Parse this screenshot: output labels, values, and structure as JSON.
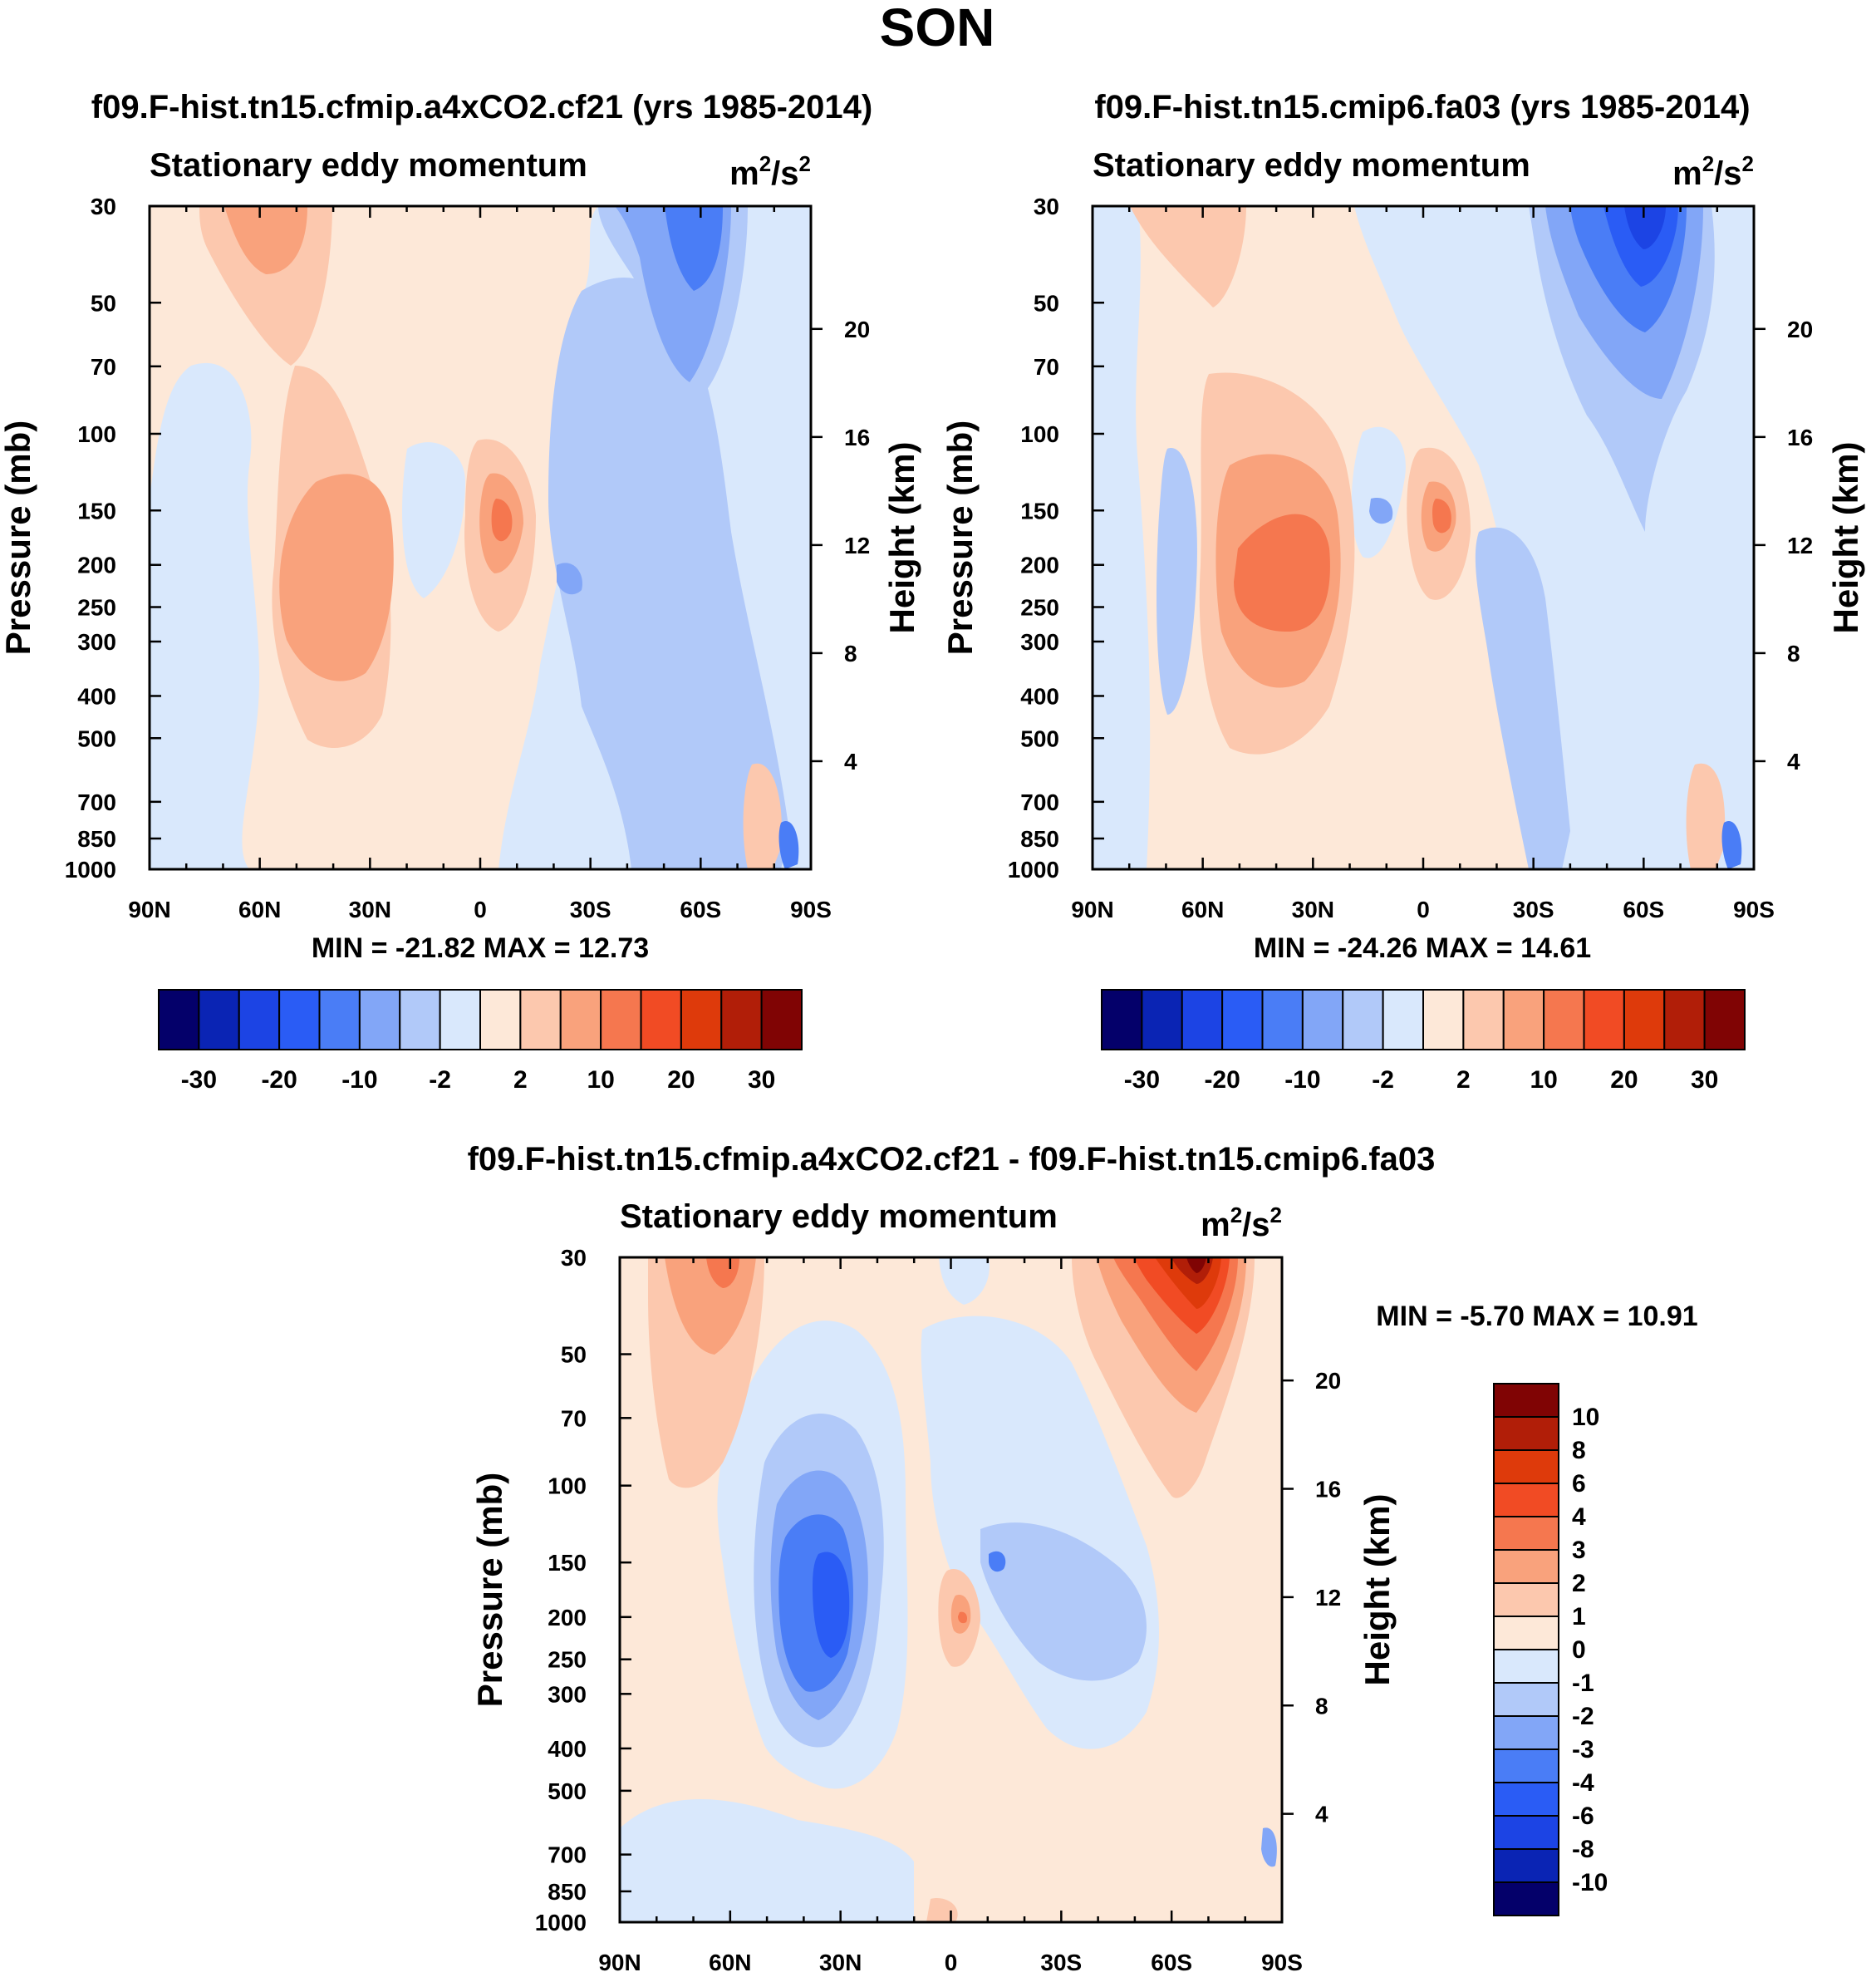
{
  "figure_title": "SON",
  "colors": {
    "blue_scale": [
      "#04006a",
      "#0a24b4",
      "#1c44e4",
      "#2a5cf5",
      "#4a7df6",
      "#82a6f7",
      "#b1c9f9",
      "#d9e8fc"
    ],
    "red_scale": [
      "#fde8d8",
      "#fcc8ae",
      "#f9a27c",
      "#f5774f",
      "#f14b24",
      "#de3a0b",
      "#b11e08",
      "#800404"
    ]
  },
  "chart_data": [
    {
      "type": "contour",
      "title": "f09.F-hist.tn15.cfmip.a4xCO2.cf21 (yrs 1985-2014)",
      "subtitle": "Stationary eddy momentum",
      "units": "m2/s2",
      "units_base": "m",
      "units_mid": "/s",
      "units_exp": "2",
      "xlabel": "",
      "ylabel": "Pressure (mb)",
      "y2label": "Height (km)",
      "x_ticks": [
        "90N",
        "60N",
        "30N",
        "0",
        "30S",
        "60S",
        "90S"
      ],
      "y_ticks": [
        "30",
        "50",
        "70",
        "100",
        "150",
        "200",
        "250",
        "300",
        "400",
        "500",
        "700",
        "850",
        "1000"
      ],
      "y2_ticks": [
        "20",
        "16",
        "12",
        "8",
        "4"
      ],
      "stat_min": "-21.82",
      "stat_max": "12.73",
      "stats_text": "MIN = -21.82  MAX =  12.73",
      "colorbar_labels": [
        "-30",
        "-20",
        "-10",
        "-2",
        "2",
        "10",
        "20",
        "30"
      ],
      "features": [
        {
          "name": "positive max near equator (10S)",
          "lat": -6,
          "pressure": 160,
          "value": 12.73
        },
        {
          "name": "negative min near 60S",
          "lat": -58,
          "pressure": 35,
          "value": -21.82
        },
        {
          "name": "positive lobe 30-50N",
          "lat": 35,
          "pressure": 220,
          "value": 8
        }
      ]
    },
    {
      "type": "contour",
      "title": "f09.F-hist.tn15.cmip6.fa03 (yrs 1985-2014)",
      "subtitle": "Stationary eddy momentum",
      "units": "m2/s2",
      "units_base": "m",
      "units_mid": "/s",
      "units_exp": "2",
      "xlabel": "",
      "ylabel": "Pressure (mb)",
      "y2label": "Height (km)",
      "x_ticks": [
        "90N",
        "60N",
        "30N",
        "0",
        "30S",
        "60S",
        "90S"
      ],
      "y_ticks": [
        "30",
        "50",
        "70",
        "100",
        "150",
        "200",
        "250",
        "300",
        "400",
        "500",
        "700",
        "850",
        "1000"
      ],
      "y2_ticks": [
        "20",
        "16",
        "12",
        "8",
        "4"
      ],
      "stat_min": "-24.26",
      "stat_max": "14.61",
      "stats_text": "MIN = -24.26  MAX =  14.61",
      "colorbar_labels": [
        "-30",
        "-20",
        "-10",
        "-2",
        "2",
        "10",
        "20",
        "30"
      ],
      "features": [
        {
          "name": "positive max near 10S",
          "lat": -7,
          "pressure": 160,
          "value": 14.61
        },
        {
          "name": "negative min near 60S",
          "lat": -60,
          "pressure": 32,
          "value": -24.26
        },
        {
          "name": "positive lobe 30-50N",
          "lat": 35,
          "pressure": 230,
          "value": 10
        }
      ]
    },
    {
      "type": "contour",
      "title": "f09.F-hist.tn15.cfmip.a4xCO2.cf21 - f09.F-hist.tn15.cmip6.fa03",
      "subtitle": "Stationary eddy momentum",
      "units": "m2/s2",
      "units_base": "m",
      "units_mid": "/s",
      "units_exp": "2",
      "xlabel": "",
      "ylabel": "Pressure (mb)",
      "y2label": "Height (km)",
      "x_ticks": [
        "90N",
        "60N",
        "30N",
        "0",
        "30S",
        "60S",
        "90S"
      ],
      "y_ticks": [
        "30",
        "50",
        "70",
        "100",
        "150",
        "200",
        "250",
        "300",
        "400",
        "500",
        "700",
        "850",
        "1000"
      ],
      "y2_ticks": [
        "20",
        "16",
        "12",
        "8",
        "4"
      ],
      "stat_min": "-5.70",
      "stat_max": "10.91",
      "stats_text": "MIN =  -5.70  MAX =  10.91",
      "colorbar_labels": [
        "10",
        "8",
        "6",
        "4",
        "3",
        "2",
        "1",
        "0",
        "-1",
        "-2",
        "-3",
        "-4",
        "-6",
        "-8",
        "-10"
      ],
      "features": [
        {
          "name": "positive max near 65S",
          "lat": -65,
          "pressure": 30,
          "value": 10.91
        },
        {
          "name": "negative min near 30N",
          "lat": 30,
          "pressure": 200,
          "value": -5.7
        },
        {
          "name": "positive lobe near 60N",
          "lat": 60,
          "pressure": 40,
          "value": 4
        }
      ]
    }
  ]
}
